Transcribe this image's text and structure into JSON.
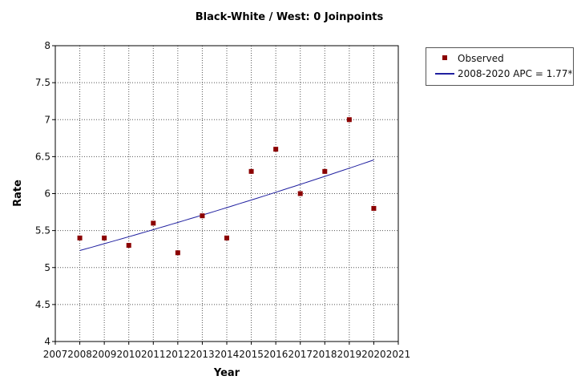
{
  "chart_data": {
    "type": "scatter",
    "title": "Black-White / West: 0 Joinpoints",
    "xlabel": "Year",
    "ylabel": "Rate",
    "xlim": [
      2007,
      2021
    ],
    "ylim": [
      4,
      8
    ],
    "x_ticks": [
      2007,
      2008,
      2009,
      2010,
      2011,
      2012,
      2013,
      2014,
      2015,
      2016,
      2017,
      2018,
      2019,
      2020,
      2021
    ],
    "y_ticks": [
      4,
      4.5,
      5,
      5.5,
      6,
      6.5,
      7,
      7.5,
      8
    ],
    "y_tick_labels": [
      "4",
      "4.5",
      "5",
      "5.5",
      "6",
      "6.5",
      "7",
      "7.5",
      "8"
    ],
    "grid": true,
    "series": [
      {
        "name": "Observed",
        "kind": "points",
        "color": "#8b0000",
        "x": [
          2008,
          2009,
          2010,
          2011,
          2012,
          2013,
          2014,
          2015,
          2016,
          2017,
          2018,
          2019,
          2020
        ],
        "y": [
          5.4,
          5.4,
          5.3,
          5.6,
          5.2,
          5.7,
          5.4,
          6.3,
          6.6,
          6.0,
          6.3,
          7.0,
          5.8
        ]
      },
      {
        "name": "2008-2020 APC  = 1.77*",
        "kind": "fit",
        "color": "#2020a0",
        "x_start": 2008,
        "x_end": 2020,
        "y_start": 5.23,
        "apc": 1.77
      }
    ],
    "legend_position": "top-right outside"
  }
}
